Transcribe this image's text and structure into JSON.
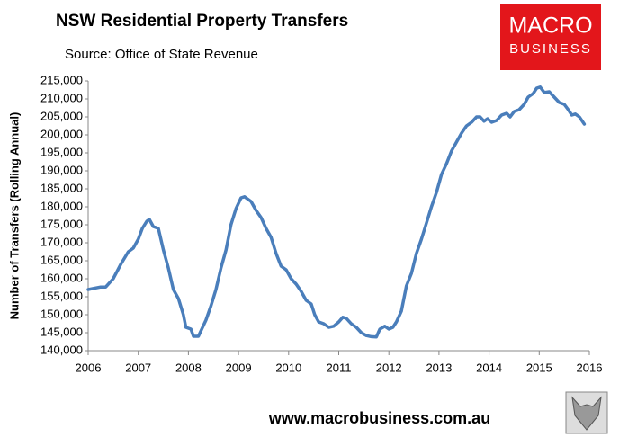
{
  "chart_data": {
    "type": "line",
    "title": "NSW Residential Property Transfers",
    "subtitle": "Source: Office of State Revenue",
    "ylabel": "Number of Transfers (Rolling Annual)",
    "color": "#4a7ebb",
    "xlim": [
      2006,
      2016
    ],
    "xticks": [
      2006,
      2007,
      2008,
      2009,
      2010,
      2011,
      2012,
      2013,
      2014,
      2015,
      2016
    ],
    "ylim": [
      140000,
      215000
    ],
    "yticks": [
      {
        "value": 140000,
        "label": "140,000"
      },
      {
        "value": 145000,
        "label": "145,000"
      },
      {
        "value": 150000,
        "label": "150,000"
      },
      {
        "value": 155000,
        "label": "155,000"
      },
      {
        "value": 160000,
        "label": "160,000"
      },
      {
        "value": 165000,
        "label": "165,000"
      },
      {
        "value": 170000,
        "label": "170,000"
      },
      {
        "value": 175000,
        "label": "175,000"
      },
      {
        "value": 180000,
        "label": "180,000"
      },
      {
        "value": 185000,
        "label": "185,000"
      },
      {
        "value": 190000,
        "label": "190,000"
      },
      {
        "value": 195000,
        "label": "195,000"
      },
      {
        "value": 200000,
        "label": "200,000"
      },
      {
        "value": 205000,
        "label": "205,000"
      },
      {
        "value": 210000,
        "label": "210,000"
      },
      {
        "value": 215000,
        "label": "215,000"
      }
    ],
    "grid": false,
    "x": [
      2006.0,
      2006.1,
      2006.25,
      2006.35,
      2006.5,
      2006.65,
      2006.8,
      2006.9,
      2007.0,
      2007.08,
      2007.17,
      2007.22,
      2007.3,
      2007.4,
      2007.5,
      2007.6,
      2007.7,
      2007.8,
      2007.9,
      2007.95,
      2008.05,
      2008.1,
      2008.2,
      2008.35,
      2008.45,
      2008.55,
      2008.65,
      2008.75,
      2008.85,
      2008.95,
      2009.05,
      2009.12,
      2009.25,
      2009.35,
      2009.45,
      2009.55,
      2009.65,
      2009.75,
      2009.85,
      2009.95,
      2010.05,
      2010.15,
      2010.25,
      2010.35,
      2010.45,
      2010.52,
      2010.6,
      2010.7,
      2010.8,
      2010.9,
      2011.0,
      2011.08,
      2011.15,
      2011.25,
      2011.35,
      2011.45,
      2011.55,
      2011.65,
      2011.75,
      2011.82,
      2011.92,
      2012.0,
      2012.08,
      2012.15,
      2012.25,
      2012.35,
      2012.45,
      2012.55,
      2012.65,
      2012.75,
      2012.85,
      2012.95,
      2013.05,
      2013.15,
      2013.25,
      2013.35,
      2013.45,
      2013.55,
      2013.65,
      2013.75,
      2013.82,
      2013.9,
      2013.97,
      2014.05,
      2014.15,
      2014.25,
      2014.35,
      2014.42,
      2014.5,
      2014.6,
      2014.7,
      2014.78,
      2014.88,
      2014.95,
      2015.02,
      2015.1,
      2015.2,
      2015.3,
      2015.4,
      2015.5,
      2015.58,
      2015.65,
      2015.72,
      2015.8,
      2015.9
    ],
    "values": [
      157000,
      157300,
      157700,
      157700,
      160000,
      164000,
      167500,
      168500,
      171000,
      174000,
      176000,
      176500,
      174500,
      174000,
      168000,
      163000,
      157000,
      154500,
      150000,
      146500,
      146000,
      144000,
      144000,
      148500,
      152500,
      157000,
      163000,
      168000,
      175000,
      179500,
      182500,
      182800,
      181500,
      179000,
      177000,
      174000,
      171500,
      167000,
      163500,
      162500,
      160000,
      158500,
      156500,
      154000,
      153000,
      150000,
      148000,
      147500,
      146500,
      146800,
      148000,
      149300,
      149000,
      147500,
      146500,
      145000,
      144200,
      143900,
      143800,
      146000,
      146800,
      146000,
      146500,
      148000,
      151000,
      158000,
      161500,
      167000,
      171000,
      175500,
      180000,
      184000,
      189000,
      192000,
      195500,
      198000,
      200500,
      202500,
      203500,
      205000,
      205000,
      203800,
      204500,
      203500,
      204000,
      205500,
      206000,
      205000,
      206500,
      207000,
      208500,
      210500,
      211500,
      213000,
      213300,
      211800,
      212000,
      210500,
      209000,
      208500,
      207000,
      205500,
      205800,
      205000,
      203000
    ]
  },
  "logo": {
    "line1": "MACRO",
    "line2": "BUSINESS"
  },
  "footer": "www.macrobusiness.com.au"
}
